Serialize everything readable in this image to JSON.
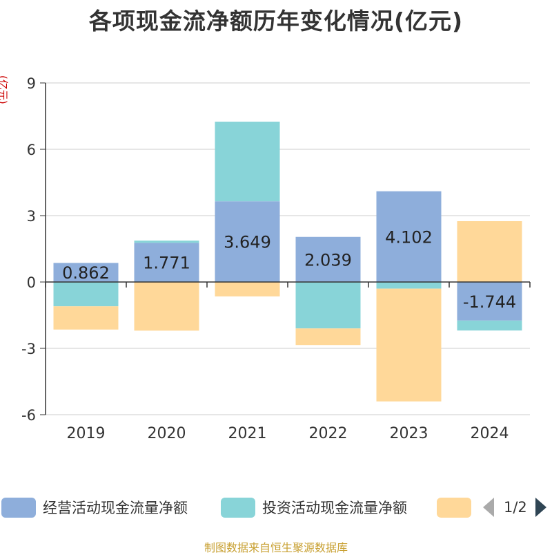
{
  "title": "各项现金流净额历年变化情况(亿元)",
  "unit_label": "(亿元)",
  "source": "制图数据来自恒生聚源数据库",
  "legend": {
    "items": [
      {
        "label": "经营活动现金流量净额",
        "color": "#8eaedb"
      },
      {
        "label": "投资活动现金流量净额",
        "color": "#88d4d8"
      },
      {
        "label": "",
        "color": "#ffd899"
      }
    ],
    "page_text": "1/2"
  },
  "chart_data": {
    "type": "bar",
    "stacked": true,
    "categories": [
      "2019",
      "2020",
      "2021",
      "2022",
      "2023",
      "2024"
    ],
    "series": [
      {
        "name": "经营活动现金流量净额",
        "color": "#8eaedb",
        "values": [
          0.862,
          1.771,
          3.649,
          2.039,
          4.102,
          -1.744
        ],
        "labels": [
          "0.862",
          "1.771",
          "3.649",
          "2.039",
          "4.102",
          "-1.744"
        ]
      },
      {
        "name": "投资活动现金流量净额",
        "color": "#88d4d8",
        "values": [
          -1.1,
          0.1,
          3.6,
          -2.1,
          -0.3,
          -0.45
        ]
      },
      {
        "name": "",
        "color": "#ffd899",
        "values": [
          -1.05,
          -2.2,
          -0.65,
          -0.75,
          -5.1,
          2.75
        ]
      }
    ],
    "ylim": [
      -6,
      9
    ],
    "yticks": [
      -6,
      -3,
      0,
      3,
      6,
      9
    ],
    "ytick_labels": [
      "-6",
      "-3",
      "0",
      "3",
      "6",
      "9"
    ],
    "grid": true,
    "legend_position": "bottom"
  }
}
